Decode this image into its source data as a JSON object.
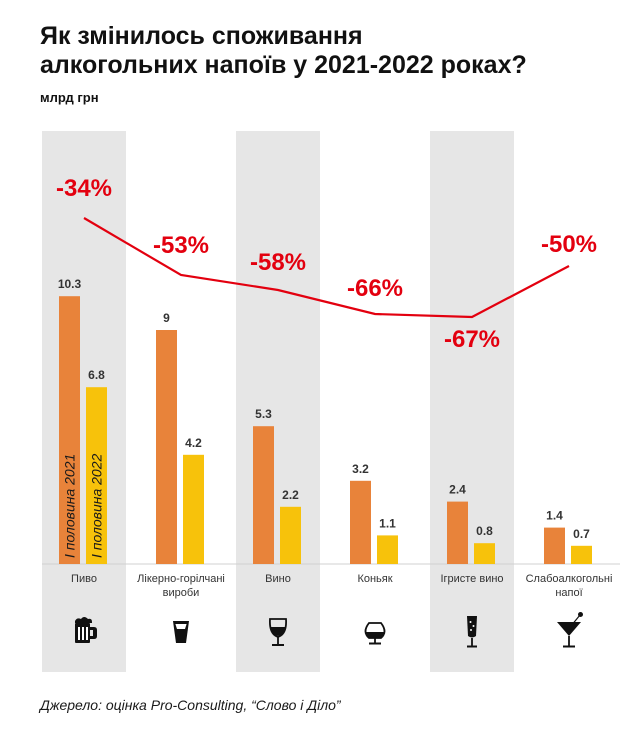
{
  "title": "Як змінилось споживання\nалкогольних напоїв у 2021-2022 роках?",
  "unit": "млрд грн",
  "source": "Джерело: оцінка Pro-Consulting, “Слово і Діло”",
  "colors": {
    "h1_2021": "#e8833a",
    "h1_2022": "#f7c20b",
    "change_line": "#e3000f",
    "column_band": "#e6e6e6"
  },
  "chart_data": {
    "type": "bar",
    "title": "Як змінилось споживання алкогольних напоїв у 2021-2022 роках?",
    "ylabel": "млрд грн",
    "ylim": [
      0,
      11
    ],
    "categories": [
      {
        "label": "Пиво",
        "label_lines": [
          "Пиво"
        ],
        "icon": "beer-mug-icon"
      },
      {
        "label": "Лікерно-горілчані вироби",
        "label_lines": [
          "Лікерно-горілчані",
          "вироби"
        ],
        "icon": "shot-glass-icon"
      },
      {
        "label": "Вино",
        "label_lines": [
          "Вино"
        ],
        "icon": "wine-glass-icon"
      },
      {
        "label": "Коньяк",
        "label_lines": [
          "Коньяк"
        ],
        "icon": "cognac-glass-icon"
      },
      {
        "label": "Ігристе вино",
        "label_lines": [
          "Ігристе вино"
        ],
        "icon": "champagne-flute-icon"
      },
      {
        "label": "Слабоалкогольні напої",
        "label_lines": [
          "Слабоалкогольні",
          "напої"
        ],
        "icon": "cocktail-glass-icon"
      }
    ],
    "series": [
      {
        "name": "I половина 2021",
        "color": "#e8833a",
        "values": [
          10.3,
          9,
          5.3,
          3.2,
          2.4,
          1.4
        ],
        "labels": [
          "10.3",
          "9",
          "5.3",
          "3.2",
          "2.4",
          "1.4"
        ]
      },
      {
        "name": "I половина 2022",
        "color": "#f7c20b",
        "values": [
          6.8,
          4.2,
          2.2,
          1.1,
          0.8,
          0.7
        ],
        "labels": [
          "6.8",
          "4.2",
          "2.2",
          "1.1",
          "0.8",
          "0.7"
        ]
      }
    ],
    "change": {
      "type": "line",
      "values": [
        -34,
        -53,
        -58,
        -66,
        -67,
        -50
      ],
      "labels": [
        "-34%",
        "-53%",
        "-58%",
        "-66%",
        "-67%",
        "-50%"
      ]
    },
    "grid": false,
    "legend": "inside-first-bars"
  }
}
